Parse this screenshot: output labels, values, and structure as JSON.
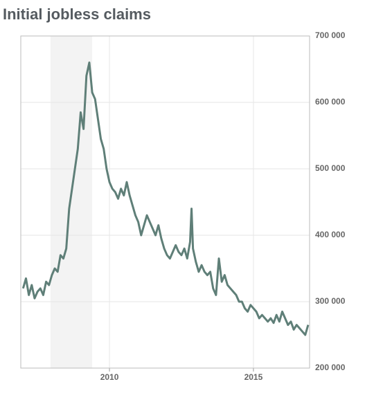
{
  "chart_data": {
    "type": "line",
    "title": "Initial jobless claims",
    "x": [
      2007.0,
      2007.1,
      2007.2,
      2007.3,
      2007.4,
      2007.5,
      2007.6,
      2007.7,
      2007.8,
      2007.9,
      2008.0,
      2008.1,
      2008.2,
      2008.3,
      2008.4,
      2008.5,
      2008.6,
      2008.7,
      2008.8,
      2008.9,
      2009.0,
      2009.1,
      2009.2,
      2009.3,
      2009.4,
      2009.5,
      2009.6,
      2009.7,
      2009.8,
      2009.9,
      2010.0,
      2010.1,
      2010.2,
      2010.3,
      2010.4,
      2010.5,
      2010.6,
      2010.7,
      2010.8,
      2010.9,
      2011.0,
      2011.1,
      2011.2,
      2011.3,
      2011.4,
      2011.5,
      2011.6,
      2011.7,
      2011.8,
      2011.9,
      2012.0,
      2012.1,
      2012.2,
      2012.3,
      2012.4,
      2012.5,
      2012.6,
      2012.7,
      2012.8,
      2012.85,
      2012.9,
      2013.0,
      2013.1,
      2013.2,
      2013.3,
      2013.4,
      2013.5,
      2013.6,
      2013.7,
      2013.8,
      2013.9,
      2014.0,
      2014.1,
      2014.2,
      2014.3,
      2014.4,
      2014.5,
      2014.6,
      2014.7,
      2014.8,
      2014.9,
      2015.0,
      2015.1,
      2015.2,
      2015.3,
      2015.4,
      2015.5,
      2015.6,
      2015.7,
      2015.8,
      2015.9,
      2016.0,
      2016.1,
      2016.2,
      2016.3,
      2016.4,
      2016.5,
      2016.6,
      2016.7,
      2016.8,
      2016.9
    ],
    "series": [
      {
        "color": "#5f7f78",
        "values": [
          320000,
          335000,
          310000,
          325000,
          305000,
          315000,
          320000,
          310000,
          330000,
          325000,
          340000,
          350000,
          345000,
          370000,
          365000,
          380000,
          440000,
          470000,
          500000,
          530000,
          585000,
          560000,
          640000,
          660000,
          615000,
          605000,
          575000,
          545000,
          530000,
          500000,
          480000,
          470000,
          465000,
          455000,
          470000,
          460000,
          480000,
          460000,
          445000,
          430000,
          420000,
          400000,
          415000,
          430000,
          420000,
          410000,
          400000,
          415000,
          395000,
          380000,
          370000,
          365000,
          375000,
          385000,
          375000,
          370000,
          380000,
          365000,
          390000,
          440000,
          380000,
          360000,
          345000,
          355000,
          345000,
          340000,
          345000,
          320000,
          310000,
          365000,
          330000,
          340000,
          325000,
          320000,
          315000,
          310000,
          300000,
          300000,
          290000,
          285000,
          295000,
          290000,
          285000,
          275000,
          280000,
          275000,
          270000,
          275000,
          268000,
          280000,
          270000,
          285000,
          275000,
          265000,
          270000,
          258000,
          265000,
          260000,
          255000,
          250000,
          265000
        ]
      }
    ],
    "xlim": [
      2006.92,
      2016.95
    ],
    "xticks": [
      2010,
      2015
    ],
    "ylim": [
      200000,
      700000
    ],
    "yticks": [
      {
        "value": 200000,
        "label": "200 000"
      },
      {
        "value": 300000,
        "label": "300 000"
      },
      {
        "value": 400000,
        "label": "400 000"
      },
      {
        "value": 500000,
        "label": "500 000"
      },
      {
        "value": 600000,
        "label": "600 000"
      },
      {
        "value": 700000,
        "label": "700 000"
      }
    ],
    "recession": [
      2007.95,
      2009.4
    ],
    "grid": true
  }
}
